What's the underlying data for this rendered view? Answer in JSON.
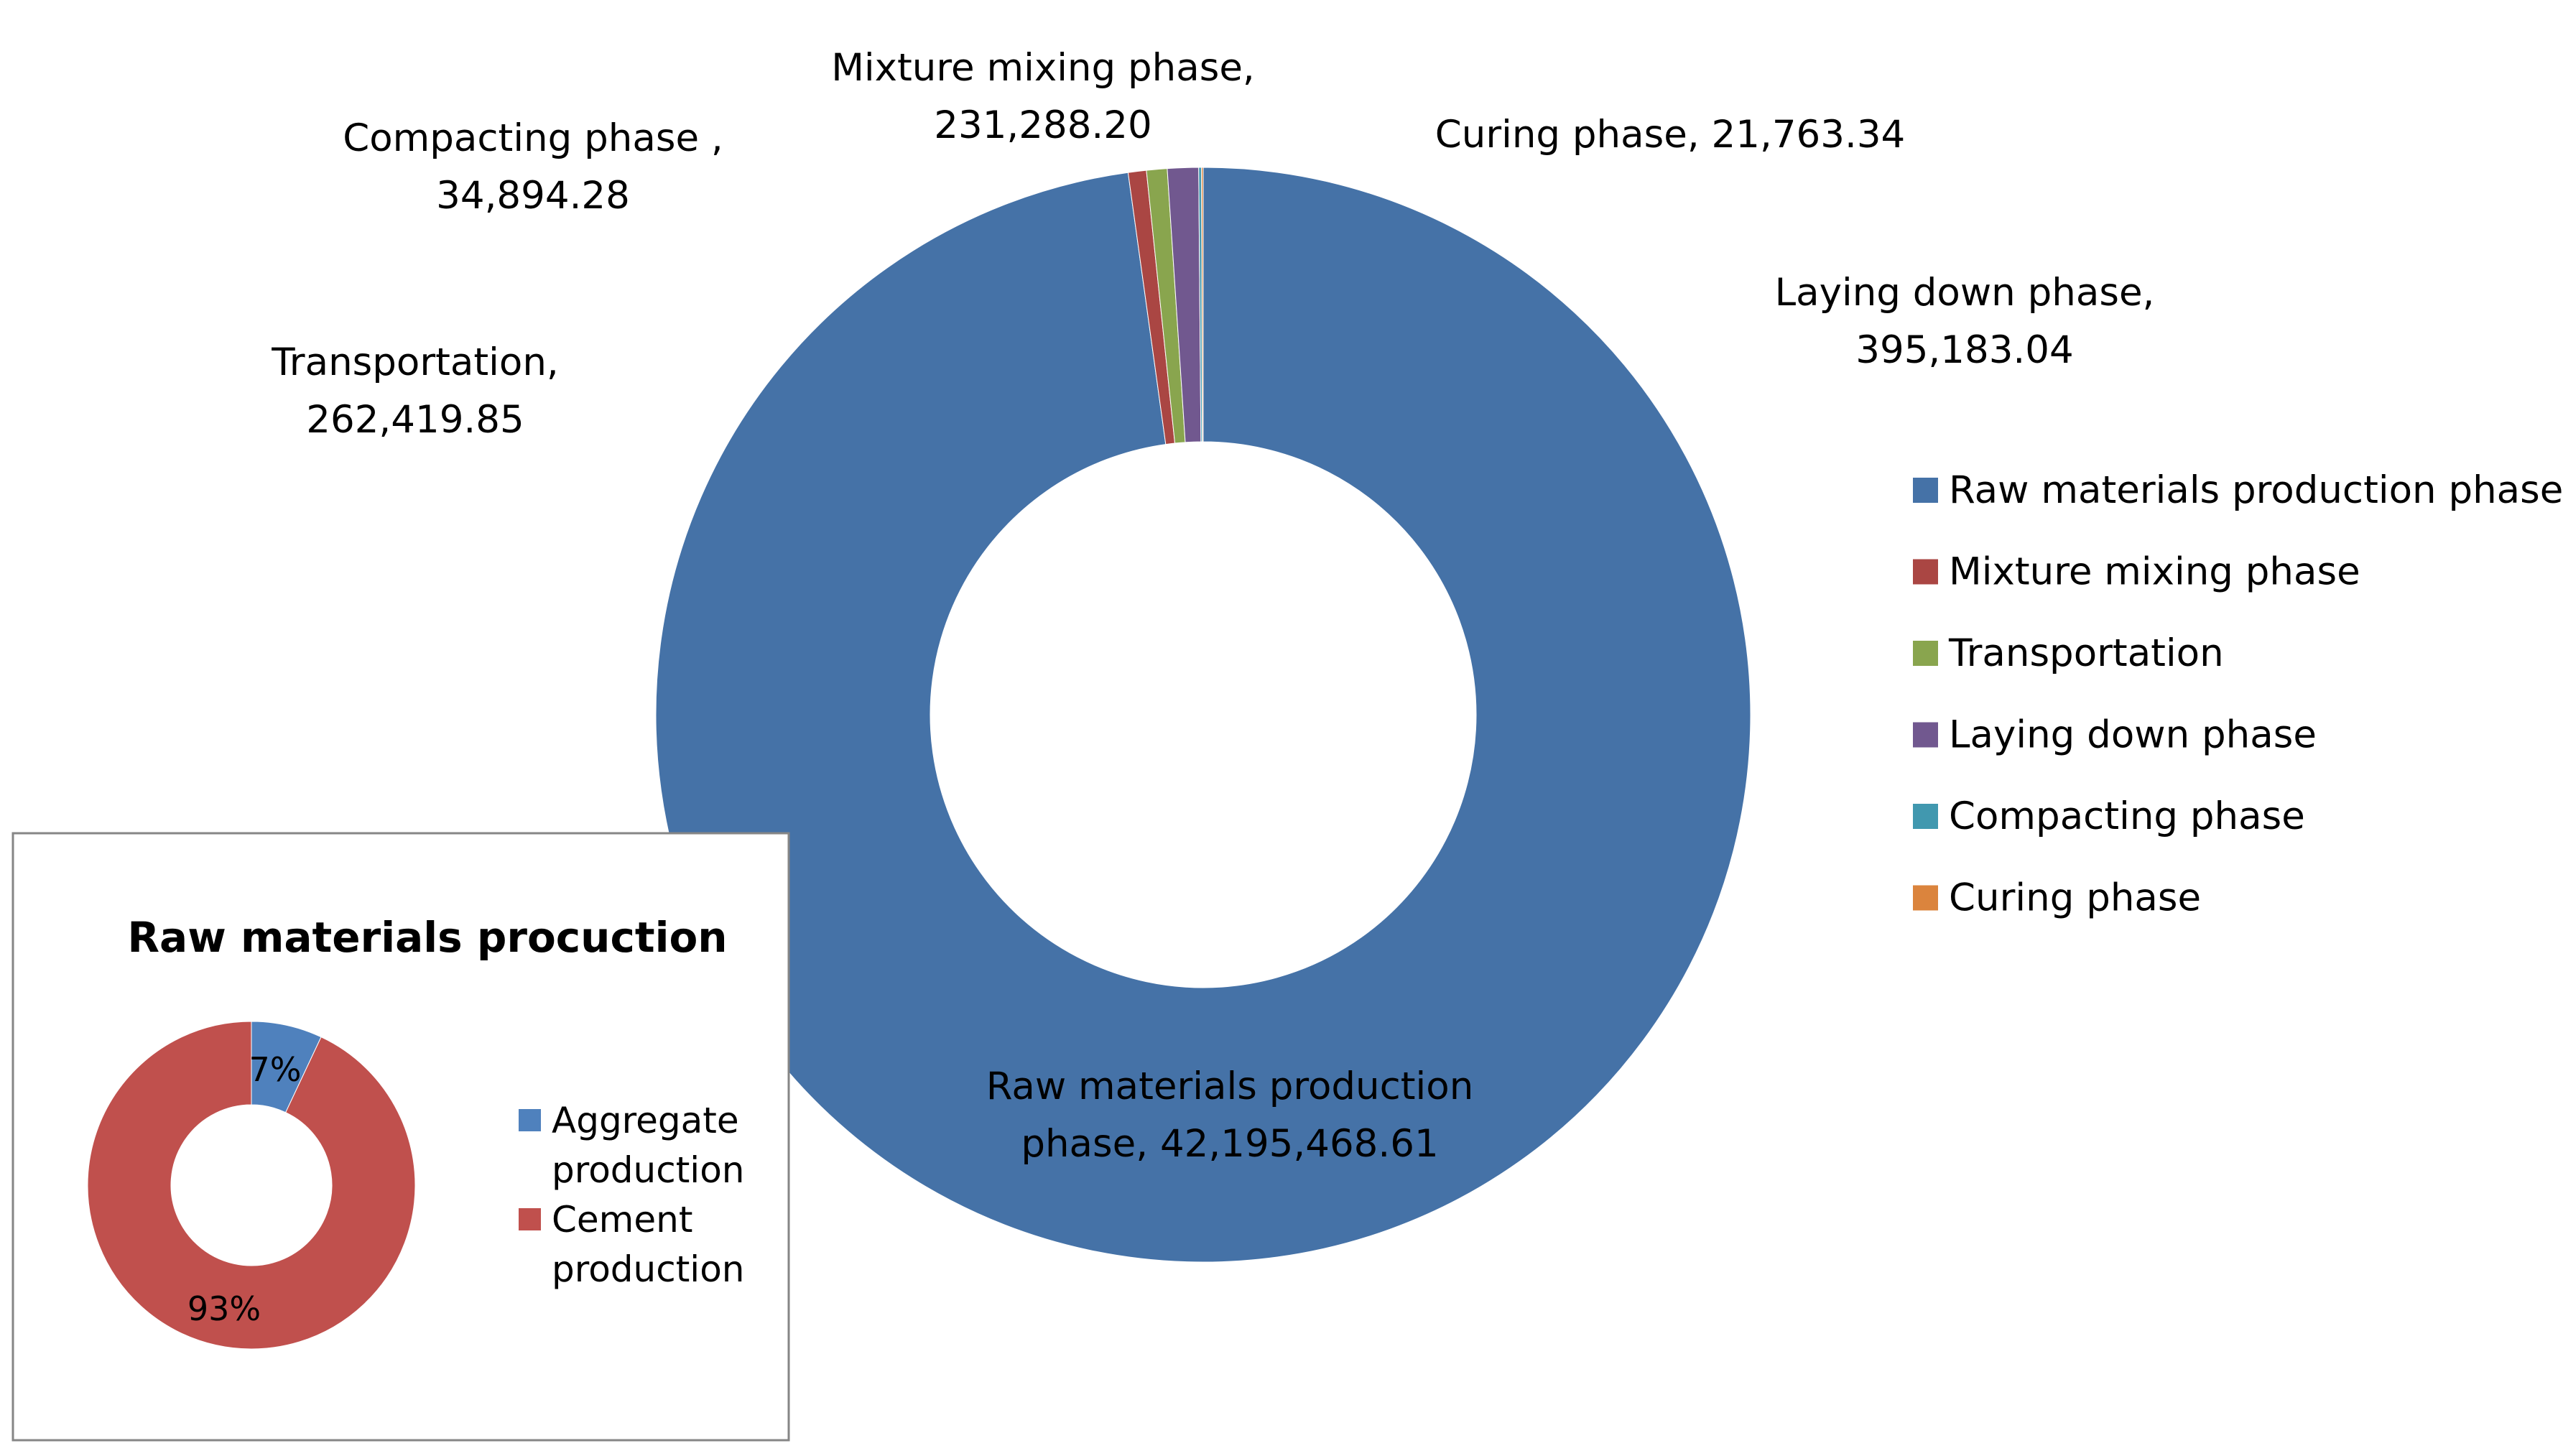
{
  "chart_data": [
    {
      "type": "donut",
      "title": "",
      "categories": [
        "Raw materials production phase",
        "Mixture mixing phase",
        "Transportation",
        "Laying down phase",
        "Compacting phase",
        "Curing phase"
      ],
      "values": [
        42195468.61,
        231288.2,
        262419.85,
        395183.04,
        34894.28,
        21763.34
      ],
      "colors": [
        "#4572A7",
        "#AA4643",
        "#89A54E",
        "#71588F",
        "#4198AF",
        "#DB843D"
      ],
      "data_labels": [
        [
          "Raw materials production",
          "phase, 42,195,468.61"
        ],
        [
          "Mixture mixing phase,",
          "231,288.20"
        ],
        [
          "Transportation,",
          "262,419.85"
        ],
        [
          "Laying down phase,",
          "395,183.04"
        ],
        [
          "Compacting phase ,",
          "34,894.28"
        ],
        [
          "Curing phase, 21,763.34"
        ]
      ],
      "legend": [
        "Raw materials production phase",
        "Mixture mixing phase",
        "Transportation",
        "Laying down phase",
        "Compacting phase",
        "Curing phase"
      ],
      "legend_position": "right"
    },
    {
      "type": "donut",
      "title": "Raw materials procuction",
      "categories": [
        "Aggregate production",
        "Cement production"
      ],
      "values": [
        7,
        93
      ],
      "value_labels": [
        "7%",
        "93%"
      ],
      "colors": [
        "#4F81BD",
        "#C0504D"
      ],
      "legend": [
        [
          "Aggregate",
          "production"
        ],
        [
          "Cement",
          "production"
        ]
      ],
      "legend_position": "right"
    }
  ]
}
